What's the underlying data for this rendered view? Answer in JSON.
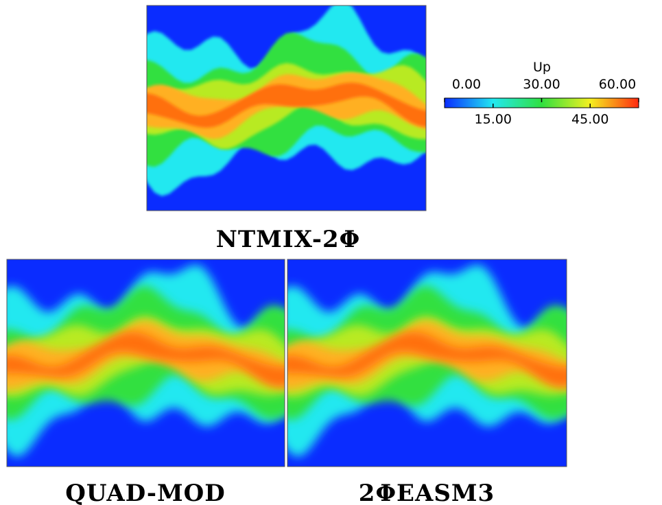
{
  "colorbar": {
    "title": "Up",
    "ticks": [
      {
        "value": 0,
        "label": "0.00"
      },
      {
        "value": 15,
        "label": "15.00"
      },
      {
        "value": 30,
        "label": "30.00"
      },
      {
        "value": 45,
        "label": "45.00"
      },
      {
        "value": 60,
        "label": "60.00"
      }
    ],
    "colormap": [
      "#0a2cff",
      "#22e8f0",
      "#30e040",
      "#f4f020",
      "#ff2a10"
    ]
  },
  "panels": [
    {
      "label": "NTMIX-2Φ"
    },
    {
      "label": "QUAD-MOD"
    },
    {
      "label": "2ΦEASM3"
    }
  ]
}
